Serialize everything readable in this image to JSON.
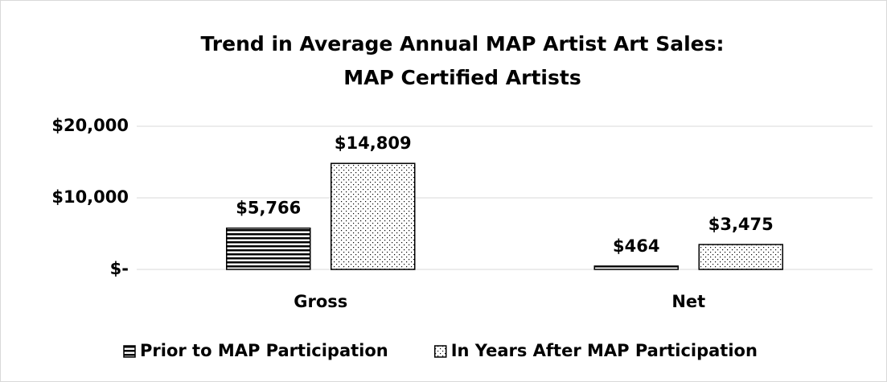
{
  "chart_data": {
    "type": "bar",
    "title": [
      "Trend in Average Annual MAP Artist Art Sales:",
      "MAP Certified Artists"
    ],
    "categories": [
      "Gross",
      "Net"
    ],
    "series": [
      {
        "name": "Prior to MAP Participation",
        "color": "#000000",
        "pattern": "horizontal-lines",
        "values": [
          5766,
          464
        ],
        "value_labels": [
          "$5,766",
          "$464"
        ]
      },
      {
        "name": "In Years After MAP Participation",
        "color": "#000000",
        "pattern": "dots",
        "values": [
          14809,
          3475
        ],
        "value_labels": [
          "$14,809",
          "$3,475"
        ]
      }
    ],
    "ylim": [
      0,
      20000
    ],
    "yticks": [
      {
        "value": 0,
        "label": "$-"
      },
      {
        "value": 10000,
        "label": "$10,000"
      },
      {
        "value": 20000,
        "label": "$20,000"
      }
    ],
    "grid": true,
    "legend": "bottom"
  }
}
